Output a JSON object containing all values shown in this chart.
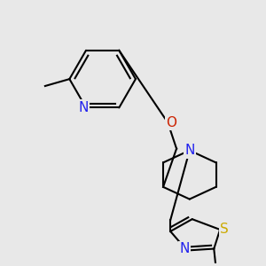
{
  "bg_color": "#e8e8e8",
  "bond_color": "#000000",
  "bond_width": 1.5,
  "fig_size": [
    3.0,
    3.0
  ],
  "dpi": 100,
  "xlim": [
    0,
    300
  ],
  "ylim": [
    0,
    300
  ],
  "N_py_label_color": "#2222ee",
  "O_label_color": "#cc2200",
  "N_pip_label_color": "#2222ee",
  "S_label_color": "#ccaa00",
  "N_thia_label_color": "#2222ee",
  "font_size": 11
}
